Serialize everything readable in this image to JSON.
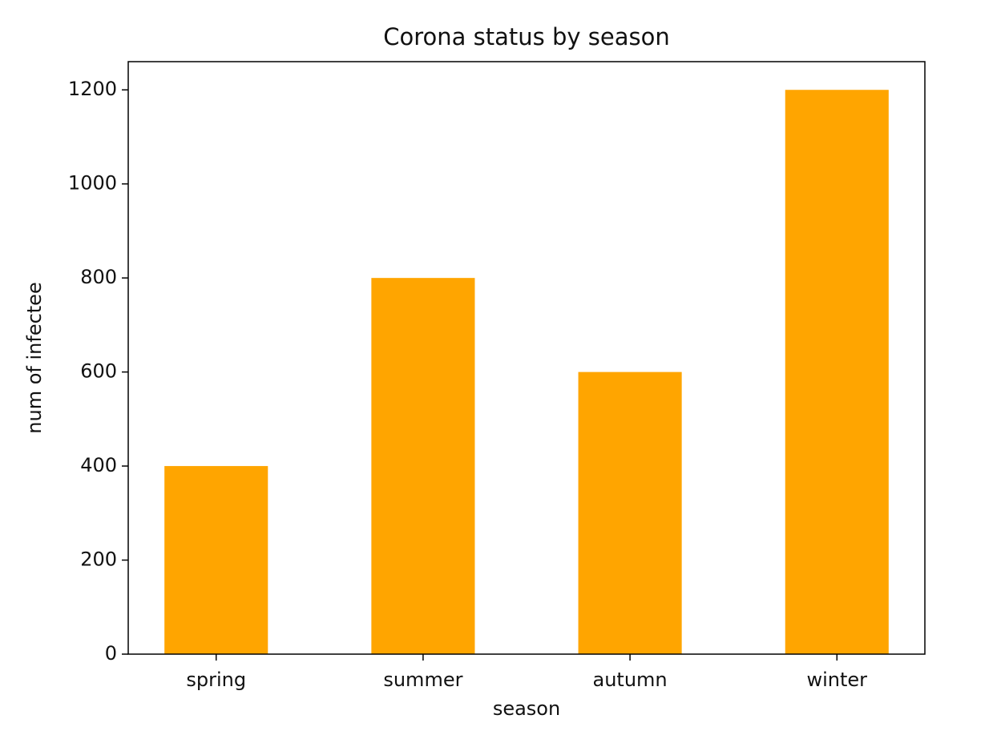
{
  "chart_data": {
    "type": "bar",
    "title": "Corona status by season",
    "x_label": "season",
    "y_label": "num of infectee",
    "categories": [
      "spring",
      "summer",
      "autumn",
      "winter"
    ],
    "values": [
      400,
      800,
      600,
      1200
    ],
    "color": "#ffa500",
    "ylim": [
      0,
      1260
    ],
    "yticks": [
      0,
      200,
      400,
      600,
      800,
      1000,
      1200
    ],
    "grid": false
  }
}
